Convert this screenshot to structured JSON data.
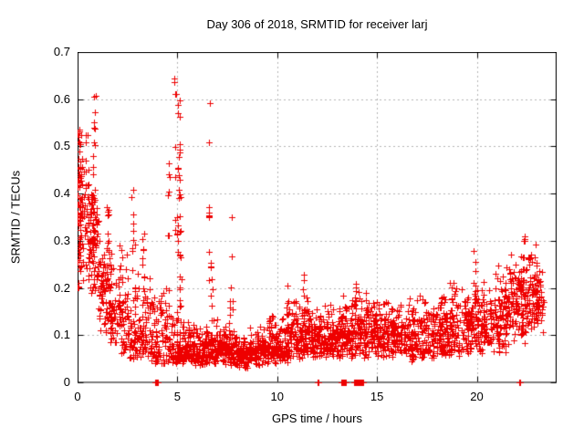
{
  "chart": {
    "title": "Day 306 of 2018, SRMTID for receiver larj",
    "xlabel": "GPS time / hours",
    "ylabel": "SRMTID / TECUs"
  },
  "chart_data": {
    "type": "scatter",
    "title": "Day 306 of 2018, SRMTID for receiver larj",
    "xlabel": "GPS time / hours",
    "ylabel": "SRMTID / TECUs",
    "xlim": [
      0,
      24
    ],
    "ylim": [
      0,
      0.7
    ],
    "x_ticks": [
      0,
      5,
      10,
      15,
      20
    ],
    "x_tick_labels": [
      "0",
      "5",
      "10",
      "15",
      "20"
    ],
    "y_ticks": [
      0,
      0.1,
      0.2,
      0.3,
      0.4,
      0.5,
      0.6,
      0.7
    ],
    "y_tick_labels": [
      "0",
      "0.1",
      "0.2",
      "0.3",
      "0.4",
      "0.5",
      "0.6",
      "0.7"
    ],
    "grid": "dotted",
    "grid_color": "#b4b4b4",
    "axis_color": "#000000",
    "marker": "plus",
    "marker_size": 7,
    "marker_color": "#ee0000",
    "seed": 20181106,
    "max_value": 0.672,
    "max_value_hour": 4.88,
    "bands": [
      [
        0.0,
        0.55,
        85,
        0.18,
        0.56,
        1.1
      ],
      [
        0.55,
        1.05,
        85,
        0.15,
        0.52,
        1.3
      ],
      [
        1.05,
        1.6,
        65,
        0.1,
        0.4,
        1.5
      ],
      [
        1.6,
        2.1,
        60,
        0.08,
        0.34,
        1.7
      ],
      [
        2.1,
        2.6,
        55,
        0.06,
        0.3,
        1.8
      ],
      [
        2.6,
        3.1,
        55,
        0.05,
        0.3,
        1.9
      ],
      [
        3.1,
        3.6,
        55,
        0.05,
        0.28,
        2.0
      ],
      [
        3.6,
        4.1,
        50,
        0.04,
        0.22,
        1.9
      ],
      [
        4.1,
        4.6,
        50,
        0.04,
        0.24,
        2.0
      ],
      [
        4.6,
        5.05,
        45,
        0.04,
        0.18,
        1.8
      ],
      [
        5.05,
        5.6,
        70,
        0.04,
        0.14,
        1.6
      ],
      [
        5.6,
        6.6,
        120,
        0.035,
        0.13,
        1.5
      ],
      [
        6.6,
        7.6,
        120,
        0.035,
        0.14,
        1.5
      ],
      [
        7.6,
        8.6,
        125,
        0.03,
        0.12,
        1.4
      ],
      [
        8.6,
        9.6,
        125,
        0.035,
        0.12,
        1.3
      ],
      [
        9.6,
        10.6,
        125,
        0.04,
        0.15,
        1.4
      ],
      [
        10.6,
        11.6,
        120,
        0.05,
        0.19,
        1.5
      ],
      [
        11.6,
        12.6,
        120,
        0.05,
        0.17,
        1.4
      ],
      [
        12.6,
        13.6,
        120,
        0.05,
        0.19,
        1.4
      ],
      [
        13.6,
        14.6,
        120,
        0.05,
        0.2,
        1.4
      ],
      [
        14.6,
        15.6,
        115,
        0.05,
        0.19,
        1.4
      ],
      [
        15.6,
        16.6,
        115,
        0.05,
        0.18,
        1.4
      ],
      [
        16.6,
        17.6,
        115,
        0.04,
        0.19,
        1.4
      ],
      [
        17.6,
        18.6,
        115,
        0.05,
        0.2,
        1.4
      ],
      [
        18.6,
        19.6,
        115,
        0.05,
        0.22,
        1.4
      ],
      [
        19.6,
        20.6,
        115,
        0.06,
        0.22,
        1.4
      ],
      [
        20.6,
        21.6,
        120,
        0.06,
        0.25,
        1.3
      ],
      [
        21.6,
        22.6,
        125,
        0.08,
        0.29,
        1.2
      ],
      [
        22.6,
        23.1,
        70,
        0.09,
        0.3,
        1.2
      ],
      [
        23.1,
        23.35,
        22,
        0.1,
        0.26,
        1.2
      ]
    ],
    "columns": [
      [
        0.05,
        0.2,
        0.55,
        22
      ],
      [
        0.12,
        0.28,
        0.5,
        12
      ],
      [
        0.75,
        0.35,
        0.5,
        8
      ],
      [
        0.85,
        0.5,
        0.61,
        9
      ],
      [
        1.52,
        0.28,
        0.44,
        8
      ],
      [
        2.75,
        0.24,
        0.41,
        8
      ],
      [
        3.3,
        0.24,
        0.35,
        6
      ],
      [
        4.6,
        0.3,
        0.47,
        7
      ],
      [
        4.88,
        0.45,
        0.672,
        5
      ],
      [
        4.95,
        0.25,
        0.45,
        6
      ],
      [
        5.08,
        0.14,
        0.62,
        22
      ],
      [
        5.15,
        0.1,
        0.4,
        12
      ],
      [
        6.6,
        0.2,
        0.6,
        9
      ],
      [
        6.72,
        0.14,
        0.3,
        8
      ],
      [
        7.7,
        0.12,
        0.385,
        8
      ],
      [
        10.5,
        0.12,
        0.22,
        7
      ],
      [
        11.3,
        0.12,
        0.23,
        9
      ],
      [
        13.95,
        0.12,
        0.21,
        7
      ],
      [
        19.9,
        0.14,
        0.28,
        7
      ],
      [
        22.35,
        0.15,
        0.31,
        10
      ]
    ],
    "zero_clusters": [
      [
        3.9,
        0.05,
        2
      ],
      [
        3.98,
        0.03,
        2
      ],
      [
        12.02,
        0.06,
        3
      ],
      [
        13.22,
        0.22,
        16
      ],
      [
        13.82,
        0.3,
        24
      ],
      [
        14.18,
        0.12,
        10
      ],
      [
        22.12,
        0.07,
        3
      ]
    ]
  }
}
